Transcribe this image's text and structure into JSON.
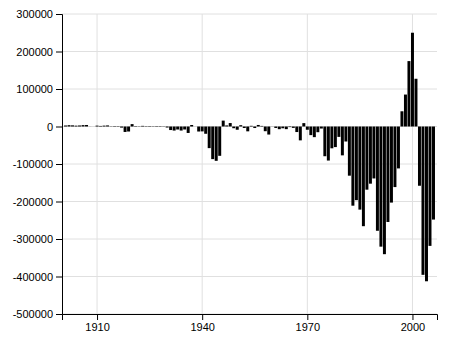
{
  "chart_data": {
    "type": "bar",
    "x": [
      1901,
      1902,
      1903,
      1904,
      1905,
      1906,
      1907,
      1908,
      1909,
      1910,
      1911,
      1912,
      1913,
      1914,
      1915,
      1916,
      1917,
      1918,
      1919,
      1920,
      1921,
      1922,
      1923,
      1924,
      1925,
      1926,
      1927,
      1928,
      1929,
      1930,
      1931,
      1932,
      1933,
      1934,
      1935,
      1936,
      1937,
      1938,
      1939,
      1940,
      1941,
      1942,
      1943,
      1944,
      1945,
      1946,
      1947,
      1948,
      1949,
      1950,
      1951,
      1952,
      1953,
      1954,
      1955,
      1956,
      1957,
      1958,
      1959,
      1960,
      1961,
      1962,
      1963,
      1964,
      1965,
      1966,
      1967,
      1968,
      1969,
      1970,
      1971,
      1972,
      1973,
      1974,
      1975,
      1976,
      1977,
      1978,
      1979,
      1980,
      1981,
      1982,
      1983,
      1984,
      1985,
      1986,
      1987,
      1988,
      1989,
      1990,
      1991,
      1992,
      1993,
      1994,
      1995,
      1996,
      1997,
      1998,
      1999,
      2000,
      2001,
      2002,
      2003,
      2004,
      2005,
      2006
    ],
    "values": [
      2675,
      3494,
      3072,
      2245,
      2744,
      3672,
      4026,
      -241,
      -89,
      2314,
      1527,
      2332,
      2869,
      735,
      -1169,
      1094,
      -2975,
      -14559,
      -13367,
      6357,
      1156,
      736,
      1709,
      1007,
      1181,
      865,
      1155,
      1091,
      734,
      -2735,
      -9459,
      -10811,
      -8018,
      -10779,
      -7980,
      -17207,
      4024,
      -89,
      -13388,
      -13043,
      -19399,
      -57682,
      -86959,
      -91549,
      -78185,
      15694,
      2882,
      9200,
      -4590,
      -8653,
      3510,
      -4018,
      -12890,
      1854,
      -4067,
      4085,
      1596,
      -12543,
      -21466,
      301,
      -3898,
      -7146,
      -4756,
      -7060,
      -1596,
      -3698,
      -14796,
      -36956,
      9000,
      -8660,
      -22987,
      -28407,
      -15208,
      -5440,
      -79284,
      -90779,
      -58135,
      -54904,
      -27708,
      -76936,
      -40013,
      -131141,
      -211143,
      -196441,
      -221660,
      -265834,
      -168482,
      -152454,
      -138566,
      -278060,
      -320415,
      -340487,
      -254607,
      -202899,
      -161560,
      -111781,
      40568,
      85183,
      174413,
      250047,
      127310,
      -157996,
      -395557,
      -412727,
      -318346,
      -248181
    ],
    "color": "#000000",
    "xlim": [
      1900,
      2007
    ],
    "ylim": [
      -500000,
      300000
    ],
    "xticks": [
      1910,
      1940,
      1970,
      2000
    ],
    "yticks": [
      300000,
      200000,
      100000,
      0,
      -100000,
      -200000,
      -300000,
      -400000,
      -500000
    ],
    "grid": true
  }
}
